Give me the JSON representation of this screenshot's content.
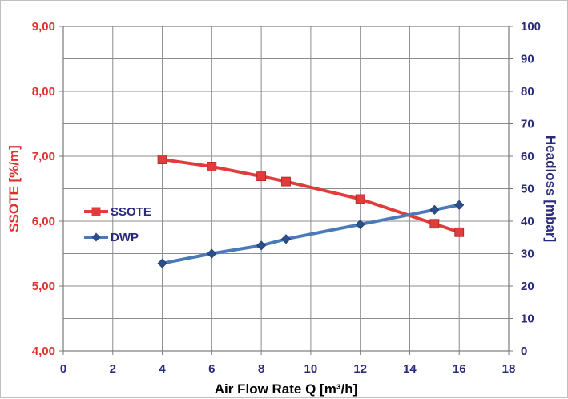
{
  "chart_data": {
    "type": "line",
    "xlabel": "Air Flow Rate Q [m³/h]",
    "ylabel_left": "SSOTE [%/m]",
    "ylabel_right": "Headloss [mbar]",
    "xlim": [
      0,
      18
    ],
    "x_ticks": [
      "0",
      "2",
      "4",
      "6",
      "8",
      "10",
      "12",
      "14",
      "16",
      "18"
    ],
    "ylim_left": [
      4.0,
      9.0
    ],
    "y_left_ticks": [
      "4,00",
      "5,00",
      "6,00",
      "7,00",
      "8,00",
      "9,00"
    ],
    "ylim_right": [
      0,
      100
    ],
    "y_right_ticks": [
      "0",
      "10",
      "20",
      "30",
      "40",
      "50",
      "60",
      "70",
      "80",
      "90",
      "100"
    ],
    "grid": true,
    "legend_position": "left-middle",
    "series": [
      {
        "name": "SSOTE",
        "axis": "left",
        "color": "#e03c3c",
        "marker": "square",
        "x": [
          4,
          6,
          8,
          9,
          12,
          15,
          16
        ],
        "y": [
          6.95,
          6.84,
          6.69,
          6.61,
          6.34,
          5.96,
          5.83
        ]
      },
      {
        "name": "DWP",
        "axis": "right",
        "color": "#4a7ab8",
        "marker": "diamond",
        "x": [
          4,
          6,
          8,
          9,
          12,
          15,
          16
        ],
        "y": [
          27,
          30,
          32.5,
          34.5,
          39,
          43.5,
          45
        ]
      }
    ]
  }
}
